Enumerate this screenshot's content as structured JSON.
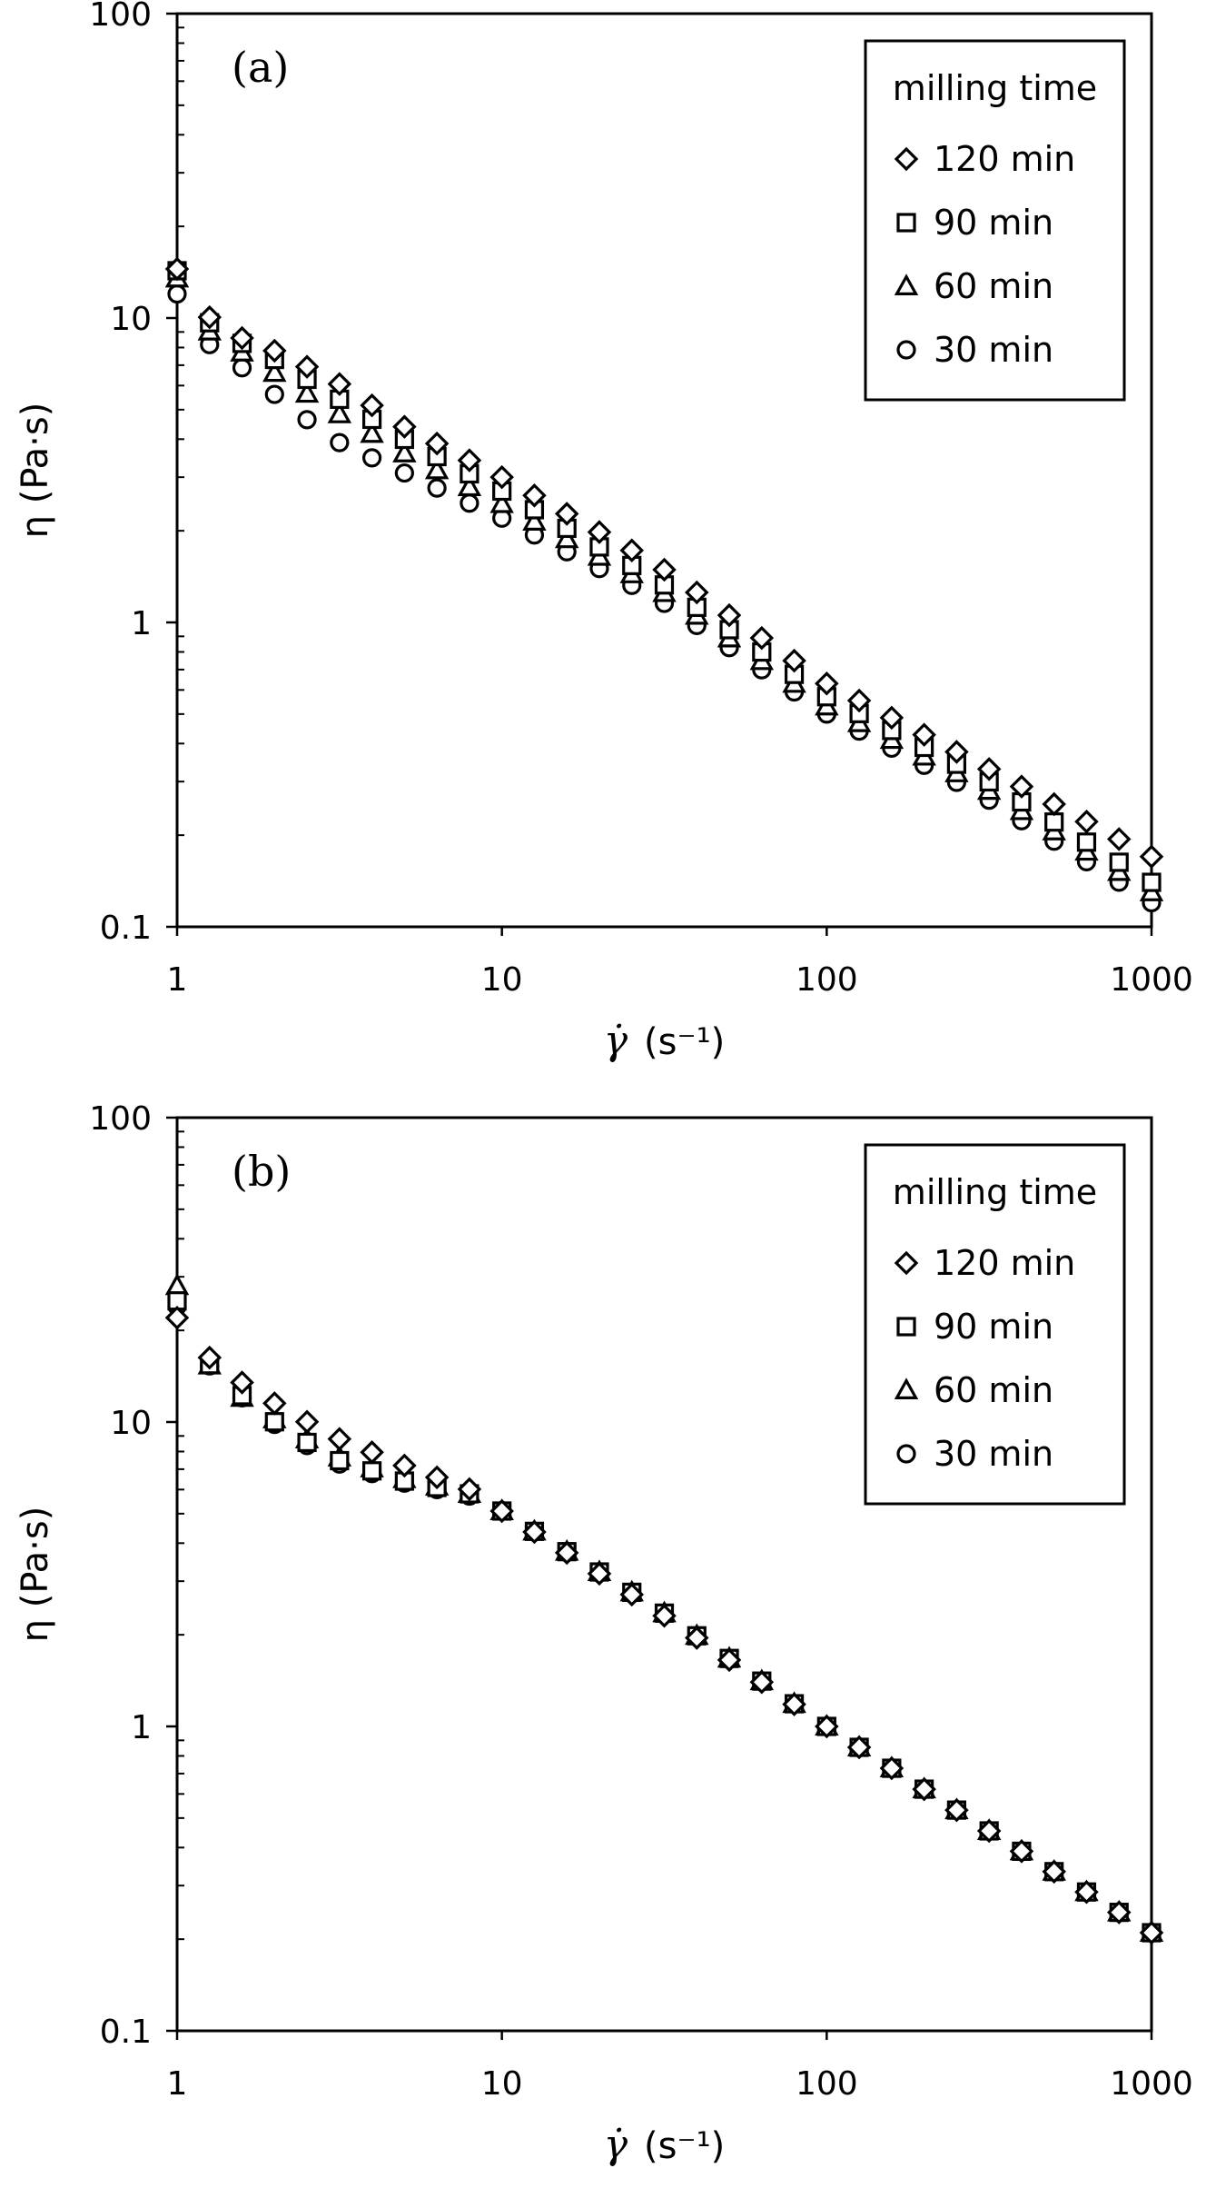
{
  "chart_data": [
    {
      "type": "scatter",
      "panel_label": "(a)",
      "xlabel_symbol": "γ̇",
      "xlabel_unit": "(s⁻¹)",
      "ylabel": "η (Pa·s)",
      "xscale": "log",
      "yscale": "log",
      "xlim": [
        1,
        1000
      ],
      "ylim": [
        0.1,
        100
      ],
      "xticks": [
        1,
        10,
        100,
        1000
      ],
      "xtick_labels": [
        "1",
        "10",
        "100",
        "1000"
      ],
      "yticks": [
        0.1,
        1,
        10,
        100
      ],
      "ytick_labels": [
        "0.1",
        "1",
        "10",
        "100"
      ],
      "grid": false,
      "legend": {
        "title": "milling time",
        "position": "top-right",
        "entries": [
          "120 min",
          "90 min",
          "60 min",
          "30 min"
        ]
      },
      "x_points": {
        "log_start": 0,
        "log_end": 3,
        "count": 31
      },
      "series": [
        {
          "name": "120 min",
          "marker": "diamond",
          "anchors": [
            [
              1,
              14.5
            ],
            [
              1.12,
              11.0
            ],
            [
              1.5,
              8.8
            ],
            [
              2,
              7.8
            ],
            [
              3,
              6.3
            ],
            [
              5,
              4.4
            ],
            [
              10,
              3.0
            ],
            [
              30,
              1.55
            ],
            [
              100,
              0.63
            ],
            [
              300,
              0.34
            ],
            [
              1000,
              0.17
            ]
          ]
        },
        {
          "name": "90 min",
          "marker": "square",
          "anchors": [
            [
              1,
              14.3
            ],
            [
              1.12,
              10.5
            ],
            [
              1.5,
              8.5
            ],
            [
              2,
              7.3
            ],
            [
              3,
              5.6
            ],
            [
              5,
              4.0
            ],
            [
              10,
              2.7
            ],
            [
              30,
              1.38
            ],
            [
              100,
              0.57
            ],
            [
              300,
              0.31
            ],
            [
              1000,
              0.14
            ]
          ]
        },
        {
          "name": "60 min",
          "marker": "triangle",
          "anchors": [
            [
              1,
              13.5
            ],
            [
              1.12,
              9.8
            ],
            [
              1.5,
              8.0
            ],
            [
              2,
              6.6
            ],
            [
              3,
              5.0
            ],
            [
              5,
              3.6
            ],
            [
              10,
              2.45
            ],
            [
              30,
              1.3
            ],
            [
              100,
              0.53
            ],
            [
              300,
              0.29
            ],
            [
              1000,
              0.13
            ]
          ]
        },
        {
          "name": "30 min",
          "marker": "circle",
          "anchors": [
            [
              1,
              12.0
            ],
            [
              1.12,
              8.9
            ],
            [
              1.5,
              7.2
            ],
            [
              2,
              5.6
            ],
            [
              3,
              4.0
            ],
            [
              5,
              3.1
            ],
            [
              10,
              2.2
            ],
            [
              30,
              1.2
            ],
            [
              100,
              0.5
            ],
            [
              300,
              0.27
            ],
            [
              1000,
              0.12
            ]
          ]
        }
      ]
    },
    {
      "type": "scatter",
      "panel_label": "(b)",
      "xlabel_symbol": "γ̇",
      "xlabel_unit": "(s⁻¹)",
      "ylabel": "η (Pa·s)",
      "xscale": "log",
      "yscale": "log",
      "xlim": [
        1,
        1000
      ],
      "ylim": [
        0.1,
        100
      ],
      "xticks": [
        1,
        10,
        100,
        1000
      ],
      "xtick_labels": [
        "1",
        "10",
        "100",
        "1000"
      ],
      "yticks": [
        0.1,
        1,
        10,
        100
      ],
      "ytick_labels": [
        "0.1",
        "1",
        "10",
        "100"
      ],
      "grid": false,
      "legend": {
        "title": "milling time",
        "position": "top-right",
        "entries": [
          "120 min",
          "90 min",
          "60 min",
          "30 min"
        ]
      },
      "x_points": {
        "log_start": 0,
        "log_end": 3,
        "count": 31
      },
      "series": [
        {
          "name": "120 min",
          "marker": "diamond",
          "anchors": [
            [
              1,
              22.0
            ],
            [
              1.12,
              18.0
            ],
            [
              1.5,
              14.0
            ],
            [
              2,
              11.5
            ],
            [
              3,
              9.0
            ],
            [
              5,
              7.2
            ],
            [
              8,
              6.0
            ],
            [
              10,
              5.1
            ],
            [
              30,
              2.4
            ],
            [
              100,
              1.0
            ],
            [
              300,
              0.47
            ],
            [
              1000,
              0.21
            ]
          ]
        },
        {
          "name": "90 min",
          "marker": "square",
          "anchors": [
            [
              1,
              25.0
            ],
            [
              1.12,
              17.5
            ],
            [
              1.5,
              12.8
            ],
            [
              2,
              10.0
            ],
            [
              3,
              7.6
            ],
            [
              5,
              6.4
            ],
            [
              8,
              5.8
            ],
            [
              10,
              5.1
            ],
            [
              30,
              2.45
            ],
            [
              100,
              1.0
            ],
            [
              300,
              0.47
            ],
            [
              1000,
              0.21
            ]
          ]
        },
        {
          "name": "60 min",
          "marker": "triangle",
          "anchors": [
            [
              1,
              28.0
            ],
            [
              1.12,
              17.6
            ],
            [
              1.5,
              12.5
            ],
            [
              2,
              10.2
            ],
            [
              3,
              7.8
            ],
            [
              5,
              6.5
            ],
            [
              8,
              5.8
            ],
            [
              10,
              5.1
            ],
            [
              30,
              2.45
            ],
            [
              100,
              1.0
            ],
            [
              300,
              0.47
            ],
            [
              1000,
              0.21
            ]
          ]
        },
        {
          "name": "30 min",
          "marker": "circle",
          "anchors": [
            [
              1,
              24.0
            ],
            [
              1.12,
              17.4
            ],
            [
              1.5,
              12.6
            ],
            [
              2,
              9.8
            ],
            [
              3,
              7.4
            ],
            [
              5,
              6.3
            ],
            [
              8,
              5.7
            ],
            [
              10,
              5.1
            ],
            [
              30,
              2.42
            ],
            [
              100,
              1.0
            ],
            [
              300,
              0.47
            ],
            [
              1000,
              0.21
            ]
          ]
        }
      ]
    }
  ]
}
